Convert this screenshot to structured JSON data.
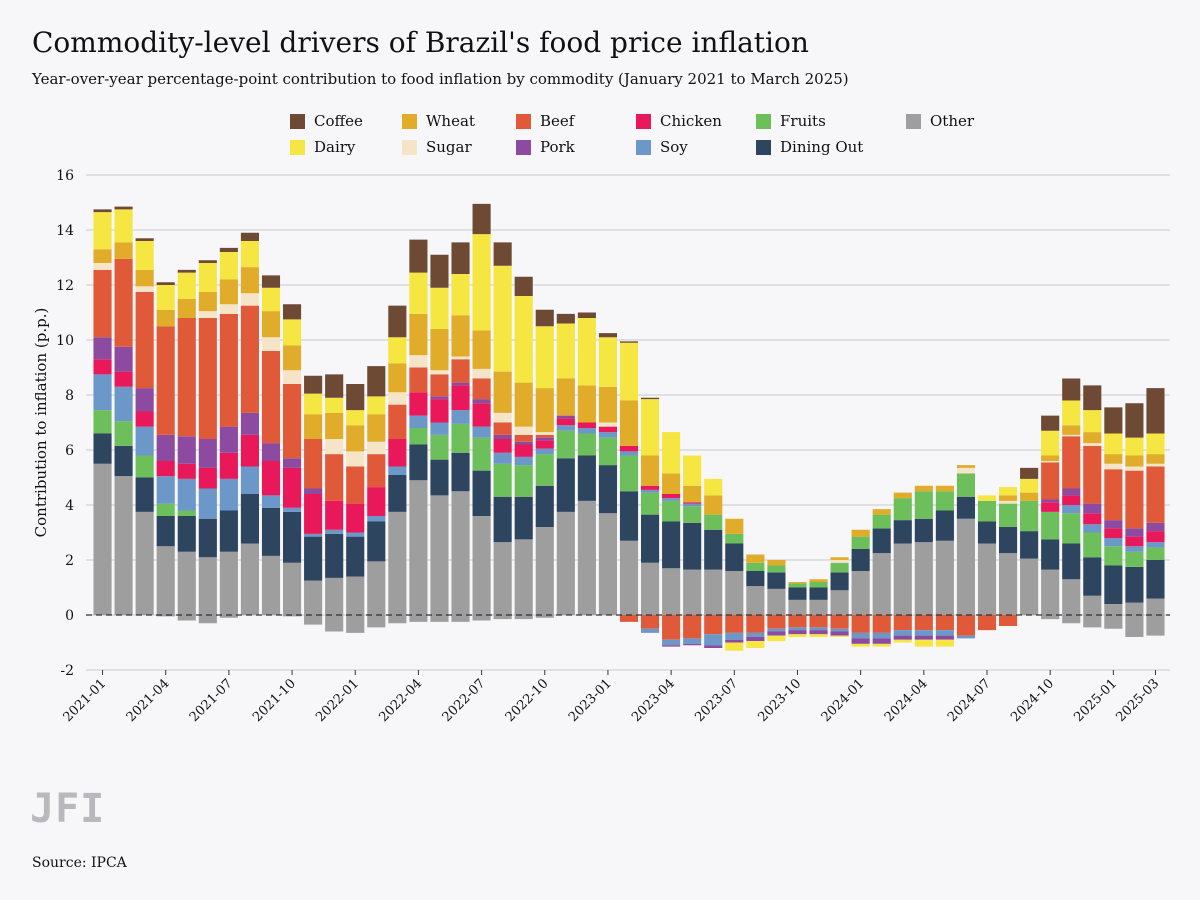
{
  "header": {
    "title": "Commodity-level drivers of Brazil's food price inflation",
    "subtitle": "Year-over-year percentage-point contribution to food inflation by commodity (January 2021 to March 2025)"
  },
  "footer": {
    "logo": "JFI",
    "source": "Source: IPCA"
  },
  "chart_data": {
    "type": "bar",
    "stacked": true,
    "title": "Commodity-level drivers of Brazil's food price inflation",
    "subtitle": "Year-over-year percentage-point contribution to food inflation by commodity (January 2021 to March 2025)",
    "xlabel": "",
    "ylabel": "Contribution to inflation (p.p.)",
    "ylim": [
      -2,
      16
    ],
    "yticks": [
      -2,
      0,
      2,
      4,
      6,
      8,
      10,
      12,
      14,
      16
    ],
    "xtick_labels": [
      "2021-01",
      "2021-04",
      "2021-07",
      "2021-10",
      "2022-01",
      "2022-04",
      "2022-07",
      "2022-10",
      "2023-01",
      "2023-04",
      "2023-07",
      "2023-10",
      "2024-01",
      "2024-04",
      "2024-07",
      "2024-10",
      "2025-01",
      "2025-03"
    ],
    "xtick_indices": [
      0,
      3,
      6,
      9,
      12,
      15,
      18,
      21,
      24,
      27,
      30,
      33,
      36,
      39,
      42,
      45,
      48,
      50
    ],
    "grid": "horizontal",
    "zero_line": "dashed",
    "legend_placement": "top",
    "categories": [
      "2021-01",
      "2021-02",
      "2021-03",
      "2021-04",
      "2021-05",
      "2021-06",
      "2021-07",
      "2021-08",
      "2021-09",
      "2021-10",
      "2021-11",
      "2021-12",
      "2022-01",
      "2022-02",
      "2022-03",
      "2022-04",
      "2022-05",
      "2022-06",
      "2022-07",
      "2022-08",
      "2022-09",
      "2022-10",
      "2022-11",
      "2022-12",
      "2023-01",
      "2023-02",
      "2023-03",
      "2023-04",
      "2023-05",
      "2023-06",
      "2023-07",
      "2023-08",
      "2023-09",
      "2023-10",
      "2023-11",
      "2023-12",
      "2024-01",
      "2024-02",
      "2024-03",
      "2024-04",
      "2024-05",
      "2024-06",
      "2024-07",
      "2024-08",
      "2024-09",
      "2024-10",
      "2024-11",
      "2024-12",
      "2025-01",
      "2025-02",
      "2025-03"
    ],
    "legend_order": [
      "Coffee",
      "Wheat",
      "Beef",
      "Chicken",
      "Fruits",
      "Other",
      "Dairy",
      "Sugar",
      "Pork",
      "Soy",
      "Dining Out"
    ],
    "series": [
      {
        "name": "Other",
        "color": "#9e9e9e",
        "values": [
          5.5,
          5.05,
          3.75,
          2.5,
          2.3,
          2.1,
          2.3,
          2.6,
          2.15,
          1.9,
          1.25,
          1.35,
          1.4,
          1.95,
          3.75,
          4.9,
          4.35,
          4.5,
          3.6,
          2.65,
          2.75,
          3.2,
          3.75,
          4.15,
          3.7,
          2.7,
          1.9,
          1.7,
          1.65,
          1.65,
          1.6,
          1.05,
          0.95,
          0.55,
          0.55,
          0.9,
          1.6,
          2.25,
          2.6,
          2.65,
          2.7,
          3.5,
          2.6,
          2.25,
          2.05,
          1.65,
          1.3,
          0.7,
          0.4,
          0.45,
          0.6
        ]
      },
      {
        "name": "Dining Out",
        "color": "#2e4560",
        "values": [
          1.1,
          1.1,
          1.25,
          1.1,
          1.3,
          1.4,
          1.5,
          1.8,
          1.75,
          1.85,
          1.6,
          1.6,
          1.45,
          1.45,
          1.35,
          1.3,
          1.3,
          1.4,
          1.65,
          1.65,
          1.55,
          1.5,
          1.95,
          1.65,
          1.75,
          1.8,
          1.75,
          1.7,
          1.7,
          1.45,
          1.0,
          0.55,
          0.6,
          0.45,
          0.45,
          0.65,
          0.8,
          0.9,
          0.85,
          0.85,
          1.1,
          0.8,
          0.8,
          0.95,
          1.0,
          1.1,
          1.3,
          1.4,
          1.4,
          1.3,
          1.4
        ]
      },
      {
        "name": "Fruits",
        "color": "#6dbf5b",
        "values": [
          0.85,
          0.9,
          0.8,
          0.45,
          0.2,
          0.0,
          0.0,
          0.0,
          0.0,
          0.0,
          0.0,
          0.0,
          0.0,
          0.0,
          0.0,
          0.6,
          0.9,
          1.05,
          1.2,
          1.2,
          1.15,
          1.15,
          1.0,
          0.8,
          1.0,
          1.3,
          0.8,
          0.75,
          0.6,
          0.55,
          0.35,
          0.3,
          0.25,
          0.15,
          0.2,
          0.35,
          0.45,
          0.5,
          0.8,
          1.0,
          0.7,
          0.85,
          0.75,
          0.85,
          1.1,
          1.0,
          1.1,
          0.9,
          0.7,
          0.55,
          0.45
        ]
      },
      {
        "name": "Soy",
        "color": "#6b98c8",
        "values": [
          1.3,
          1.25,
          1.05,
          1.0,
          1.15,
          1.1,
          1.15,
          1.0,
          0.45,
          0.15,
          0.1,
          0.15,
          0.15,
          0.2,
          0.3,
          0.45,
          0.45,
          0.5,
          0.4,
          0.4,
          0.3,
          0.2,
          0.2,
          0.2,
          0.2,
          0.15,
          0.1,
          0.1,
          0.1,
          0.0,
          0.0,
          0.0,
          0.0,
          0.0,
          0.0,
          0.0,
          0.0,
          0.0,
          0.0,
          0.0,
          0.0,
          0.0,
          0.0,
          0.0,
          0.0,
          0.0,
          0.3,
          0.3,
          0.3,
          0.2,
          0.2
        ]
      },
      {
        "name": "Chicken",
        "color": "#e8185a",
        "values": [
          0.55,
          0.55,
          0.55,
          0.55,
          0.55,
          0.75,
          0.95,
          1.15,
          1.25,
          1.45,
          1.45,
          1.05,
          1.05,
          1.05,
          1.0,
          0.85,
          0.85,
          0.9,
          0.85,
          0.5,
          0.45,
          0.3,
          0.25,
          0.2,
          0.2,
          0.2,
          0.15,
          0.15,
          0.05,
          0.0,
          0.0,
          0.0,
          0.0,
          0.0,
          0.0,
          0.0,
          0.0,
          0.0,
          0.0,
          0.0,
          0.0,
          0.0,
          0.0,
          0.0,
          0.0,
          0.35,
          0.35,
          0.4,
          0.35,
          0.35,
          0.4
        ]
      },
      {
        "name": "Pork",
        "color": "#8c4aa0",
        "values": [
          0.8,
          0.9,
          0.85,
          0.95,
          1.0,
          1.05,
          0.95,
          0.8,
          0.65,
          0.35,
          0.2,
          0.0,
          0.0,
          0.0,
          0.0,
          0.0,
          0.1,
          0.1,
          0.15,
          0.15,
          0.1,
          0.1,
          0.1,
          0.0,
          0.0,
          0.0,
          0.0,
          0.0,
          0.0,
          0.0,
          0.0,
          0.0,
          0.0,
          0.0,
          0.0,
          0.0,
          0.0,
          0.0,
          0.0,
          0.0,
          0.0,
          0.0,
          0.0,
          0.0,
          0.0,
          0.1,
          0.25,
          0.35,
          0.3,
          0.3,
          0.3
        ]
      },
      {
        "name": "Beef",
        "color": "#e05a3a",
        "values": [
          2.45,
          3.2,
          3.5,
          3.95,
          4.3,
          4.4,
          4.1,
          3.9,
          3.35,
          2.7,
          1.8,
          1.7,
          1.35,
          1.2,
          1.25,
          0.9,
          0.8,
          0.85,
          0.75,
          0.45,
          0.25,
          0.1,
          0.0,
          0.0,
          0.0,
          0.0,
          0.0,
          0.0,
          0.0,
          0.0,
          0.0,
          0.0,
          0.0,
          0.0,
          0.0,
          0.0,
          0.0,
          0.0,
          0.0,
          0.0,
          0.0,
          0.0,
          0.0,
          0.0,
          0.0,
          1.35,
          1.9,
          2.1,
          1.85,
          2.1,
          2.05
        ]
      },
      {
        "name": "Sugar",
        "color": "#f6e4c8",
        "values": [
          0.25,
          0.0,
          0.2,
          0.0,
          0.0,
          0.25,
          0.35,
          0.45,
          0.5,
          0.5,
          0.0,
          0.55,
          0.55,
          0.45,
          0.45,
          0.45,
          0.15,
          0.1,
          0.35,
          0.35,
          0.3,
          0.1,
          0.0,
          0.0,
          0.15,
          0.0,
          0.0,
          0.0,
          0.0,
          0.0,
          0.0,
          0.0,
          0.0,
          0.0,
          0.0,
          0.1,
          0.0,
          0.0,
          0.0,
          0.0,
          0.0,
          0.2,
          0.0,
          0.1,
          0.0,
          0.05,
          0.05,
          0.1,
          0.2,
          0.15,
          0.1
        ]
      },
      {
        "name": "Wheat",
        "color": "#e0ac2a",
        "values": [
          0.5,
          0.6,
          0.6,
          0.6,
          0.7,
          0.7,
          0.9,
          0.95,
          0.95,
          0.9,
          0.9,
          0.95,
          0.95,
          1.0,
          1.05,
          1.5,
          1.5,
          1.5,
          1.4,
          1.5,
          1.6,
          1.6,
          1.35,
          1.35,
          1.3,
          1.65,
          1.1,
          0.75,
          0.6,
          0.7,
          0.55,
          0.3,
          0.2,
          0.05,
          0.1,
          0.1,
          0.25,
          0.2,
          0.2,
          0.2,
          0.2,
          0.1,
          0.0,
          0.2,
          0.3,
          0.2,
          0.35,
          0.4,
          0.35,
          0.4,
          0.35
        ]
      },
      {
        "name": "Dairy",
        "color": "#f5e642",
        "values": [
          1.35,
          1.2,
          1.05,
          0.9,
          0.95,
          1.05,
          1.0,
          0.95,
          0.85,
          0.95,
          0.75,
          0.55,
          0.55,
          0.65,
          0.95,
          1.5,
          1.5,
          1.5,
          3.5,
          3.85,
          3.15,
          2.25,
          2.0,
          2.45,
          1.8,
          2.1,
          2.05,
          1.5,
          1.1,
          0.6,
          0.0,
          0.0,
          0.0,
          0.0,
          0.0,
          0.0,
          0.0,
          0.0,
          0.0,
          0.0,
          0.0,
          0.0,
          0.2,
          0.3,
          0.5,
          0.9,
          0.9,
          0.8,
          0.75,
          0.65,
          0.75
        ]
      },
      {
        "name": "Coffee",
        "color": "#6e4a35",
        "values": [
          0.1,
          0.1,
          0.1,
          0.1,
          0.1,
          0.1,
          0.15,
          0.3,
          0.45,
          0.55,
          0.65,
          0.85,
          0.95,
          1.1,
          1.15,
          1.2,
          1.2,
          1.15,
          1.1,
          0.85,
          0.7,
          0.6,
          0.35,
          0.2,
          0.15,
          0.05,
          0.05,
          0.0,
          0.0,
          0.0,
          0.0,
          0.0,
          0.0,
          0.0,
          0.0,
          0.0,
          0.0,
          0.0,
          0.0,
          0.0,
          0.0,
          0.0,
          0.0,
          0.0,
          0.4,
          0.55,
          0.8,
          0.9,
          0.95,
          1.25,
          1.65
        ]
      },
      {
        "name": "Other (neg)",
        "legend": false,
        "color": "#9e9e9e",
        "values": [
          0.0,
          0.0,
          0.0,
          -0.05,
          -0.2,
          -0.3,
          -0.1,
          0.0,
          0.0,
          -0.05,
          -0.35,
          -0.6,
          -0.65,
          -0.45,
          -0.3,
          -0.25,
          -0.25,
          -0.25,
          -0.2,
          -0.15,
          -0.15,
          -0.1,
          0.0,
          0.0,
          0.0,
          0.0,
          0.0,
          0.0,
          0.0,
          0.0,
          0.0,
          0.0,
          0.0,
          0.0,
          0.0,
          0.0,
          0.0,
          0.0,
          0.0,
          0.0,
          0.0,
          0.0,
          0.0,
          0.0,
          0.0,
          -0.15,
          -0.3,
          -0.45,
          -0.5,
          -0.8,
          -0.75
        ]
      },
      {
        "name": "Beef (neg)",
        "legend": false,
        "color": "#e05a3a",
        "values": [
          0.0,
          0.0,
          0.0,
          0.0,
          0.0,
          0.0,
          0.0,
          0.0,
          0.0,
          0.0,
          0.0,
          0.0,
          0.0,
          0.0,
          0.0,
          0.0,
          0.0,
          0.0,
          0.0,
          0.0,
          0.0,
          0.0,
          0.0,
          0.0,
          0.0,
          -0.25,
          -0.5,
          -0.9,
          -0.85,
          -0.7,
          -0.65,
          -0.65,
          -0.5,
          -0.45,
          -0.45,
          -0.5,
          -0.65,
          -0.65,
          -0.55,
          -0.55,
          -0.55,
          -0.75,
          -0.55,
          -0.4,
          0.0,
          0.0,
          0.0,
          0.0,
          0.0,
          0.0,
          0.0
        ]
      },
      {
        "name": "Soy (neg)",
        "legend": false,
        "color": "#6b98c8",
        "values": [
          0.0,
          0.0,
          0.0,
          0.0,
          0.0,
          0.0,
          0.0,
          0.0,
          0.0,
          0.0,
          0.0,
          0.0,
          0.0,
          0.0,
          0.0,
          0.0,
          0.0,
          0.0,
          0.0,
          0.0,
          0.0,
          0.0,
          0.0,
          0.0,
          0.0,
          0.0,
          -0.15,
          -0.2,
          -0.2,
          -0.4,
          -0.25,
          -0.15,
          -0.1,
          -0.1,
          -0.1,
          -0.1,
          -0.2,
          -0.2,
          -0.2,
          -0.2,
          -0.2,
          -0.1,
          0.0,
          0.0,
          0.0,
          0.0,
          0.0,
          0.0,
          0.0,
          0.0,
          0.0
        ]
      },
      {
        "name": "Pork (neg)",
        "legend": false,
        "color": "#8c4aa0",
        "values": [
          0.0,
          0.0,
          0.0,
          0.0,
          0.0,
          0.0,
          0.0,
          0.0,
          0.0,
          0.0,
          0.0,
          0.0,
          0.0,
          0.0,
          0.0,
          0.0,
          0.0,
          0.0,
          0.0,
          0.0,
          0.0,
          0.0,
          0.0,
          0.0,
          0.0,
          0.0,
          0.0,
          -0.05,
          -0.05,
          -0.1,
          -0.1,
          -0.15,
          -0.15,
          -0.15,
          -0.15,
          -0.15,
          -0.2,
          -0.2,
          -0.15,
          -0.15,
          -0.15,
          0.0,
          0.0,
          0.0,
          0.0,
          0.0,
          0.0,
          0.0,
          0.0,
          0.0,
          0.0
        ]
      },
      {
        "name": "Dairy (neg)",
        "legend": false,
        "color": "#f5e642",
        "values": [
          0.0,
          0.0,
          0.0,
          0.0,
          0.0,
          0.0,
          0.0,
          0.0,
          0.0,
          0.0,
          0.0,
          0.0,
          0.0,
          0.0,
          0.0,
          0.0,
          0.0,
          0.0,
          0.0,
          0.0,
          0.0,
          0.0,
          0.0,
          0.0,
          0.0,
          0.0,
          0.0,
          0.0,
          0.0,
          0.0,
          -0.3,
          -0.25,
          -0.2,
          -0.1,
          -0.1,
          -0.05,
          -0.1,
          -0.1,
          -0.1,
          -0.25,
          -0.25,
          0.0,
          0.0,
          0.0,
          0.0,
          0.0,
          0.0,
          0.0,
          0.0,
          0.0,
          0.0
        ]
      }
    ]
  }
}
